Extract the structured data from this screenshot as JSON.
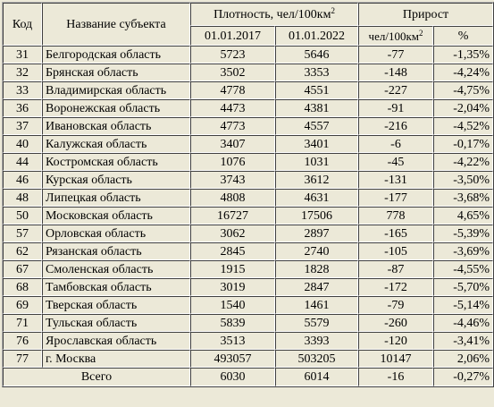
{
  "headers": {
    "code": "Код",
    "name": "Название субъекта",
    "density": "Плотность, чел/100км",
    "density_sup": "2",
    "date1": "01.01.2017",
    "date2": "01.01.2022",
    "growth": "Прирост",
    "abs": "чел/100км",
    "abs_sup": "2",
    "pct": "%"
  },
  "rows": [
    {
      "code": "31",
      "name": "Белгородская область",
      "d2017": "5723",
      "d2022": "5646",
      "abs": "-77",
      "pct": "-1,35%"
    },
    {
      "code": "32",
      "name": "Брянская область",
      "d2017": "3502",
      "d2022": "3353",
      "abs": "-148",
      "pct": "-4,24%"
    },
    {
      "code": "33",
      "name": "Владимирская область",
      "d2017": "4778",
      "d2022": "4551",
      "abs": "-227",
      "pct": "-4,75%"
    },
    {
      "code": "36",
      "name": "Воронежская область",
      "d2017": "4473",
      "d2022": "4381",
      "abs": "-91",
      "pct": "-2,04%"
    },
    {
      "code": "37",
      "name": "Ивановская область",
      "d2017": "4773",
      "d2022": "4557",
      "abs": "-216",
      "pct": "-4,52%"
    },
    {
      "code": "40",
      "name": "Калужская область",
      "d2017": "3407",
      "d2022": "3401",
      "abs": "-6",
      "pct": "-0,17%"
    },
    {
      "code": "44",
      "name": "Костромская область",
      "d2017": "1076",
      "d2022": "1031",
      "abs": "-45",
      "pct": "-4,22%"
    },
    {
      "code": "46",
      "name": "Курская область",
      "d2017": "3743",
      "d2022": "3612",
      "abs": "-131",
      "pct": "-3,50%"
    },
    {
      "code": "48",
      "name": "Липецкая область",
      "d2017": "4808",
      "d2022": "4631",
      "abs": "-177",
      "pct": "-3,68%"
    },
    {
      "code": "50",
      "name": "Московская область",
      "d2017": "16727",
      "d2022": "17506",
      "abs": "778",
      "pct": "4,65%"
    },
    {
      "code": "57",
      "name": "Орловская область",
      "d2017": "3062",
      "d2022": "2897",
      "abs": "-165",
      "pct": "-5,39%"
    },
    {
      "code": "62",
      "name": "Рязанская область",
      "d2017": "2845",
      "d2022": "2740",
      "abs": "-105",
      "pct": "-3,69%"
    },
    {
      "code": "67",
      "name": "Смоленская область",
      "d2017": "1915",
      "d2022": "1828",
      "abs": "-87",
      "pct": "-4,55%"
    },
    {
      "code": "68",
      "name": "Тамбовская область",
      "d2017": "3019",
      "d2022": "2847",
      "abs": "-172",
      "pct": "-5,70%"
    },
    {
      "code": "69",
      "name": "Тверская область",
      "d2017": "1540",
      "d2022": "1461",
      "abs": "-79",
      "pct": "-5,14%"
    },
    {
      "code": "71",
      "name": "Тульская область",
      "d2017": "5839",
      "d2022": "5579",
      "abs": "-260",
      "pct": "-4,46%"
    },
    {
      "code": "76",
      "name": "Ярославская область",
      "d2017": "3513",
      "d2022": "3393",
      "abs": "-120",
      "pct": "-3,41%"
    },
    {
      "code": "77",
      "name": "г. Москва",
      "d2017": "493057",
      "d2022": "503205",
      "abs": "10147",
      "pct": "2,06%"
    }
  ],
  "total": {
    "label": "Всего",
    "d2017": "6030",
    "d2022": "6014",
    "abs": "-16",
    "pct": "-0,27%"
  }
}
